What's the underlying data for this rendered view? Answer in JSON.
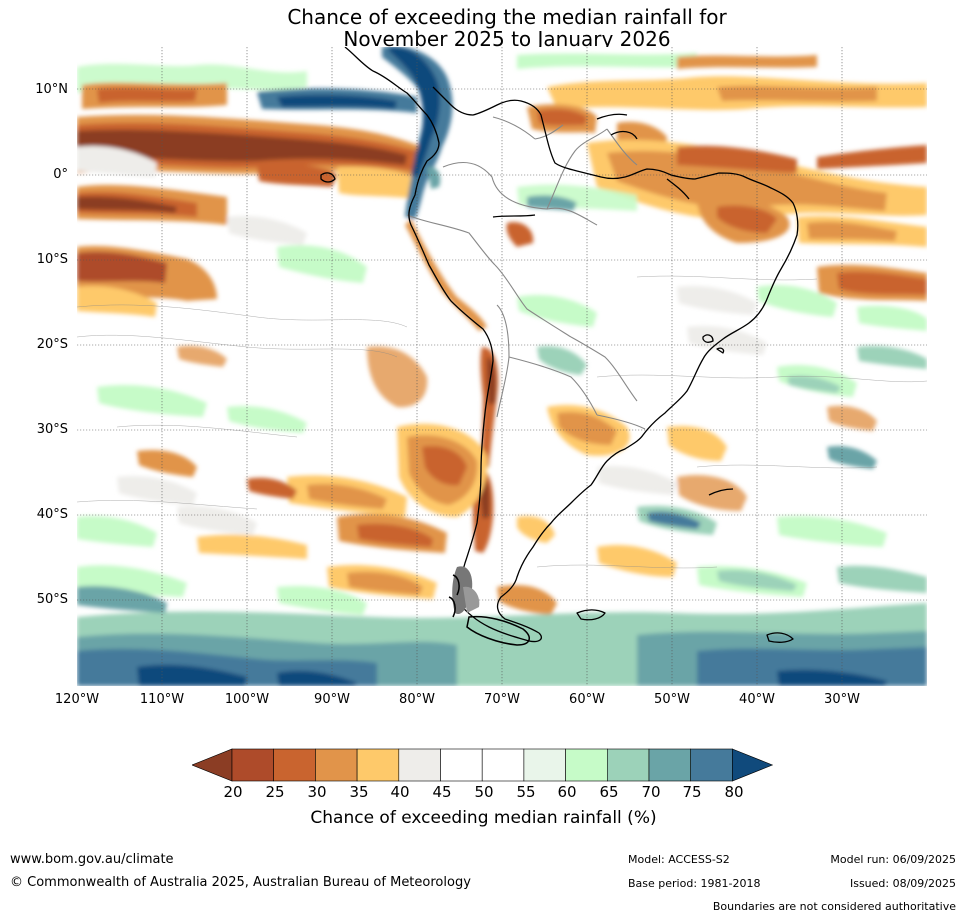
{
  "title": {
    "line1": "Chance of exceeding the median rainfall for",
    "line2": "November 2025 to January 2026"
  },
  "map": {
    "region": "South America",
    "lat_labels": [
      "10°N",
      "0°",
      "10°S",
      "20°S",
      "30°S",
      "40°S",
      "50°S"
    ],
    "lon_labels": [
      "120°W",
      "110°W",
      "100°W",
      "90°W",
      "80°W",
      "70°W",
      "60°W",
      "50°W",
      "40°W",
      "30°W"
    ],
    "lat_range": [
      -60,
      15
    ],
    "lon_range": [
      -120,
      -20
    ],
    "gridlines": true,
    "zones": [
      {
        "name": "equatorial-pacific-dry-north",
        "level": "20-25",
        "color": "#a9482a"
      },
      {
        "name": "colombia-panama-wet",
        "level": "75-80",
        "color": "#104a7c"
      },
      {
        "name": "ne-brazil-dry",
        "level": "25-35",
        "color": "#c9642f"
      },
      {
        "name": "chile-central-dry",
        "level": "20-30",
        "color": "#b0532c"
      },
      {
        "name": "argentina-dry-patches",
        "level": "30-40",
        "color": "#e1944a"
      },
      {
        "name": "southern-ocean-wet",
        "level": "65-80",
        "color": "#467b9c"
      }
    ]
  },
  "colorbar": {
    "ticks": [
      "20",
      "25",
      "30",
      "35",
      "40",
      "45",
      "50",
      "55",
      "60",
      "65",
      "70",
      "75",
      "80"
    ],
    "colors": [
      "#8b3d24",
      "#ae4b2a",
      "#c9642f",
      "#e1944a",
      "#fec96a",
      "#eeedea",
      "#ffffff",
      "#ffffff",
      "#e9f5ea",
      "#c6fbc8",
      "#9cd2b9",
      "#6aa4a7",
      "#457a9b",
      "#104a7c"
    ],
    "label": "Chance of exceeding median rainfall (%)"
  },
  "footer": {
    "url": "www.bom.gov.au/climate",
    "copyright": "© Commonwealth of Australia 2025, Australian Bureau of Meteorology",
    "model": "Model: ACCESS-S2",
    "base_period": "Base period: 1981-2018",
    "model_run": "Model run: 06/09/2025",
    "issued": "Issued: 08/09/2025",
    "disclaimer": "Boundaries are not considered authoritative"
  }
}
